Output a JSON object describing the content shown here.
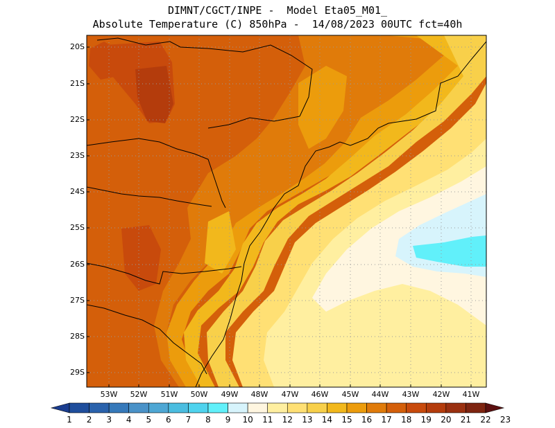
{
  "header": {
    "line1": "DIMNT/CGCT/INPE -  Model Eta05_M01_",
    "line2": "Absolute Temperature (C) 850hPa -  14/08/2023 00UTC fct=40h"
  },
  "map": {
    "lat_labels": [
      "20S",
      "21S",
      "22S",
      "23S",
      "24S",
      "25S",
      "26S",
      "27S",
      "28S",
      "29S"
    ],
    "lon_labels": [
      "53W",
      "52W",
      "51W",
      "50W",
      "49W",
      "48W",
      "47W",
      "46W",
      "45W",
      "44W",
      "43W",
      "42W",
      "41W"
    ]
  },
  "colorbar": {
    "labels": [
      "1",
      "2",
      "3",
      "4",
      "5",
      "6",
      "7",
      "8",
      "9",
      "10",
      "11",
      "12",
      "13",
      "14",
      "15",
      "16",
      "17",
      "18",
      "19",
      "20",
      "21",
      "22",
      "23"
    ],
    "colors": [
      "#1a3d8f",
      "#1f4e9c",
      "#2a62ac",
      "#3679ba",
      "#4a92c8",
      "#4ea7d4",
      "#4bbde0",
      "#4fd3ee",
      "#61f0fa",
      "#d7f4fc",
      "#fff6e0",
      "#ffefa0",
      "#ffe074",
      "#f8d04a",
      "#f2b81c",
      "#ec9c0c",
      "#e07b0a",
      "#d45f0a",
      "#c84a0c",
      "#b43c0c",
      "#9a3010",
      "#7e2410",
      "#5c1010"
    ]
  }
}
